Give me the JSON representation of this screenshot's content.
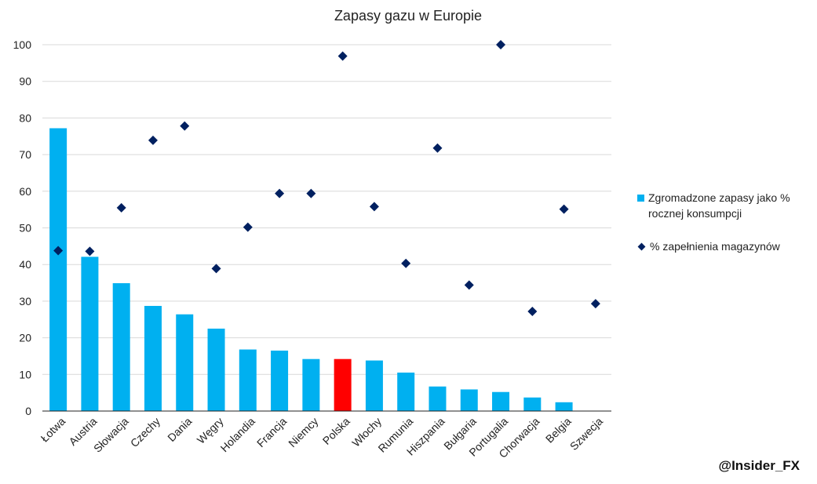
{
  "chart_data": {
    "type": "bar",
    "title": "Zapasy gazu w Europie",
    "categories": [
      "Łotwa",
      "Austria",
      "Słowacja",
      "Czechy",
      "Dania",
      "Węgry",
      "Holandia",
      "Francja",
      "Niemcy",
      "Polska",
      "Włochy",
      "Rumunia",
      "Hiszpania",
      "Bułgaria",
      "Portugalia",
      "Chorwacja",
      "Belgia",
      "Szwecja"
    ],
    "series": [
      {
        "name": "Zgromadzone zapasy jako % rocznej konsumpcji",
        "kind": "bar",
        "color": "#00B0F0",
        "highlight": {
          "category": "Polska",
          "color": "#FF0000"
        },
        "values": [
          77.2,
          42.1,
          34.9,
          28.7,
          26.4,
          22.5,
          16.8,
          16.5,
          14.2,
          14.2,
          13.8,
          10.5,
          6.7,
          5.9,
          5.2,
          3.7,
          2.4,
          0
        ]
      },
      {
        "name": "% zapełnienia magazynów",
        "kind": "scatter",
        "marker": "diamond",
        "color": "#002060",
        "values": [
          43.8,
          43.6,
          55.5,
          73.9,
          77.8,
          38.9,
          50.2,
          59.4,
          59.4,
          96.9,
          55.8,
          40.3,
          71.8,
          34.4,
          100,
          27.2,
          55.1,
          29.3
        ]
      }
    ],
    "ylim": [
      0,
      100
    ],
    "yticks": [
      0,
      10,
      20,
      30,
      40,
      50,
      60,
      70,
      80,
      90,
      100
    ],
    "grid": true,
    "legend_position": "right",
    "xlabel": "",
    "ylabel": ""
  },
  "legend": {
    "bar_label": "Zgromadzone zapasy jako % rocznej konsumpcji",
    "marker_label": "% zapełnienia magazynów"
  },
  "watermark": "@Insider_FX"
}
